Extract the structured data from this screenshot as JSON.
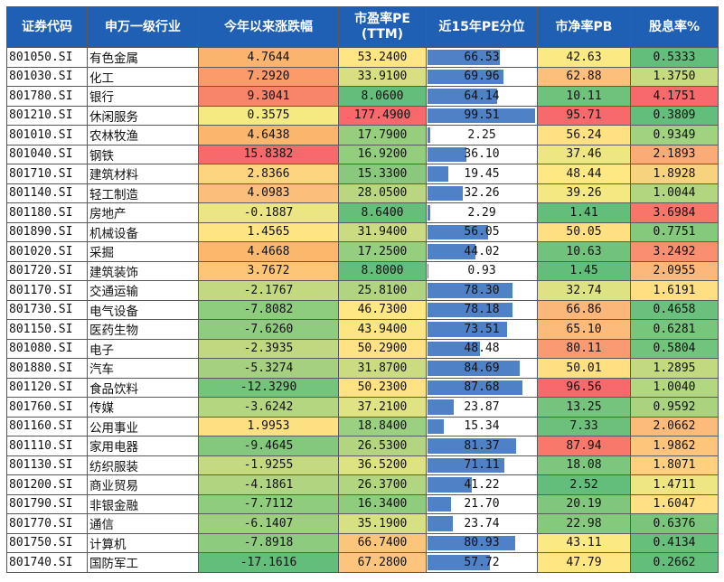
{
  "headers": [
    "证券代码",
    "申万一级行业",
    "今年以来涨跌幅",
    "市盈率PE\n(TTM)",
    "近15年PE分位",
    "市净率PB",
    "股息率%"
  ],
  "rows": [
    {
      "code": "801050.SI",
      "name": "有色金属",
      "chg": "4.7644",
      "pe": "53.2400",
      "pct": "66.53",
      "pb": "42.63",
      "div": "0.5333",
      "c": [
        "#fbb46d",
        "#ffe584",
        "#fbe983",
        "#63be7b"
      ]
    },
    {
      "code": "801030.SI",
      "name": "化工",
      "chg": "7.2920",
      "pe": "33.9100",
      "pct": "69.96",
      "pb": "62.88",
      "div": "1.3750",
      "c": [
        "#fa9b69",
        "#d8df81",
        "#fcc07c",
        "#c8da7f"
      ]
    },
    {
      "code": "801780.SI",
      "name": "银行",
      "chg": "9.3041",
      "pe": "8.0600",
      "pct": "64.14",
      "pb": "10.11",
      "div": "4.1751",
      "c": [
        "#f8856a",
        "#63be7b",
        "#6fc27c",
        "#f8696b"
      ]
    },
    {
      "code": "801210.SI",
      "name": "休闲服务",
      "chg": "0.3575",
      "pe": "177.4900",
      "pct": "99.51",
      "pb": "95.71",
      "div": "0.3809",
      "c": [
        "#f5e982",
        "#f8696b",
        "#f8696b",
        "#63be7b"
      ]
    },
    {
      "code": "801010.SI",
      "name": "农林牧渔",
      "chg": "4.6438",
      "pe": "17.7900",
      "pct": "2.25",
      "pb": "56.24",
      "div": "0.9349",
      "c": [
        "#fbb66e",
        "#96ce7e",
        "#fde183",
        "#a1d27f"
      ]
    },
    {
      "code": "801040.SI",
      "name": "钢铁",
      "chg": "15.8382",
      "pe": "16.9200",
      "pct": "36.10",
      "pb": "37.46",
      "div": "2.1893",
      "c": [
        "#f8696b",
        "#93cd7e",
        "#ede683",
        "#fbac76"
      ]
    },
    {
      "code": "801710.SI",
      "name": "建筑材料",
      "chg": "2.8366",
      "pe": "15.3300",
      "pct": "19.45",
      "pb": "48.44",
      "div": "1.8928",
      "c": [
        "#fdd57f",
        "#8ac97d",
        "#fee883",
        "#f8d37e"
      ]
    },
    {
      "code": "801140.SI",
      "name": "轻工制造",
      "chg": "4.0983",
      "pe": "28.0500",
      "pct": "32.26",
      "pb": "39.26",
      "div": "1.0044",
      "c": [
        "#fcbf7b",
        "#bad681",
        "#f4e883",
        "#b2d680"
      ]
    },
    {
      "code": "801180.SI",
      "name": "房地产",
      "chg": "-0.1887",
      "pe": "8.6400",
      "pct": "2.29",
      "pb": "1.41",
      "div": "3.6984",
      "c": [
        "#ebe583",
        "#65bf7b",
        "#63be7b",
        "#f8756b"
      ]
    },
    {
      "code": "801890.SI",
      "name": "机械设备",
      "chg": "1.4565",
      "pe": "31.9400",
      "pct": "56.05",
      "pb": "50.05",
      "div": "0.7751",
      "c": [
        "#ffe484",
        "#cbdb81",
        "#fee082",
        "#85c97d"
      ]
    },
    {
      "code": "801020.SI",
      "name": "采掘",
      "chg": "4.4668",
      "pe": "17.2500",
      "pct": "44.02",
      "pb": "10.63",
      "div": "3.2492",
      "c": [
        "#fbb86d",
        "#94ce7e",
        "#71c27c",
        "#f98e71"
      ]
    },
    {
      "code": "801720.SI",
      "name": "建筑装饰",
      "chg": "3.7672",
      "pe": "8.8000",
      "pct": "0.93",
      "pb": "1.45",
      "div": "2.0955",
      "c": [
        "#fcc676",
        "#63be7b",
        "#63be7b",
        "#fbb87a"
      ]
    },
    {
      "code": "801170.SI",
      "name": "交通运输",
      "chg": "-2.1767",
      "pe": "25.8100",
      "pct": "78.30",
      "pb": "32.74",
      "div": "1.6191",
      "c": [
        "#c2d980",
        "#b0d480",
        "#dfe283",
        "#fee083"
      ]
    },
    {
      "code": "801730.SI",
      "name": "电气设备",
      "chg": "-7.8082",
      "pe": "46.7300",
      "pct": "78.18",
      "pb": "66.86",
      "div": "0.4658",
      "c": [
        "#8ecc7e",
        "#ffe784",
        "#fbb67a",
        "#6ac07c"
      ]
    },
    {
      "code": "801150.SI",
      "name": "医药生物",
      "chg": "-7.6260",
      "pe": "43.9400",
      "pct": "73.51",
      "pb": "65.10",
      "div": "0.6281",
      "c": [
        "#90cc7e",
        "#fbe683",
        "#fcbb7b",
        "#78c57c"
      ]
    },
    {
      "code": "801080.SI",
      "name": "电子",
      "chg": "-2.3935",
      "pe": "50.2900",
      "pct": "48.48",
      "pb": "80.11",
      "div": "0.5804",
      "c": [
        "#c0d880",
        "#ffe283",
        "#fa9a72",
        "#72c37c"
      ]
    },
    {
      "code": "801880.SI",
      "name": "汽车",
      "chg": "-5.3274",
      "pe": "31.8700",
      "pct": "84.69",
      "pb": "50.01",
      "div": "1.2895",
      "c": [
        "#a4d07f",
        "#cadb81",
        "#fee083",
        "#c2d980"
      ]
    },
    {
      "code": "801120.SI",
      "name": "食品饮料",
      "chg": "-12.3290",
      "pe": "50.2300",
      "pct": "87.68",
      "pb": "96.56",
      "div": "1.0040",
      "c": [
        "#75c47c",
        "#ffe283",
        "#f8696b",
        "#b3d680"
      ]
    },
    {
      "code": "801760.SI",
      "name": "传媒",
      "chg": "-3.6242",
      "pe": "37.2100",
      "pct": "23.87",
      "pb": "13.25",
      "div": "0.9592",
      "c": [
        "#b4d680",
        "#e0e383",
        "#75c37c",
        "#a9d37f"
      ]
    },
    {
      "code": "801160.SI",
      "name": "公用事业",
      "chg": "1.9953",
      "pe": "18.8400",
      "pct": "15.34",
      "pb": "7.33",
      "div": "2.0662",
      "c": [
        "#fde082",
        "#9ad07f",
        "#6cc07c",
        "#fcbb7b"
      ]
    },
    {
      "code": "801110.SI",
      "name": "家用电器",
      "chg": "-9.4645",
      "pe": "26.5300",
      "pct": "81.37",
      "pb": "87.94",
      "div": "1.9862",
      "c": [
        "#83c87d",
        "#b3d580",
        "#f8796c",
        "#fdc57c"
      ]
    },
    {
      "code": "801130.SI",
      "name": "纺织服装",
      "chg": "-1.9255",
      "pe": "36.5200",
      "pct": "71.11",
      "pb": "18.08",
      "div": "1.8071",
      "c": [
        "#c5da80",
        "#dde283",
        "#7cc67d",
        "#fed07f"
      ]
    },
    {
      "code": "801200.SI",
      "name": "商业贸易",
      "chg": "-4.1861",
      "pe": "26.3700",
      "pct": "41.22",
      "pb": "2.52",
      "div": "1.4711",
      "c": [
        "#b0d47f",
        "#b2d580",
        "#64be7b",
        "#eee683"
      ]
    },
    {
      "code": "801790.SI",
      "name": "非银金融",
      "chg": "-7.7112",
      "pe": "16.3400",
      "pct": "21.70",
      "pb": "20.19",
      "div": "1.6047",
      "c": [
        "#8fcc7e",
        "#8fcc7e",
        "#80c77d",
        "#ffe084"
      ]
    },
    {
      "code": "801770.SI",
      "name": "通信",
      "chg": "-6.1407",
      "pe": "35.1900",
      "pct": "23.74",
      "pb": "22.98",
      "div": "0.6376",
      "c": [
        "#9dcf7f",
        "#d7e082",
        "#85c97d",
        "#79c57c"
      ]
    },
    {
      "code": "801750.SI",
      "name": "计算机",
      "chg": "-7.8918",
      "pe": "66.7400",
      "pct": "80.93",
      "pb": "43.11",
      "div": "0.4134",
      "c": [
        "#8dcc7e",
        "#fcc57c",
        "#fbe983",
        "#66bf7b"
      ]
    },
    {
      "code": "801740.SI",
      "name": "国防军工",
      "chg": "-17.1616",
      "pe": "67.2800",
      "pct": "57.72",
      "pb": "47.79",
      "div": "0.2662",
      "c": [
        "#63be7b",
        "#fcc47c",
        "#fee683",
        "#63be7b"
      ]
    }
  ]
}
